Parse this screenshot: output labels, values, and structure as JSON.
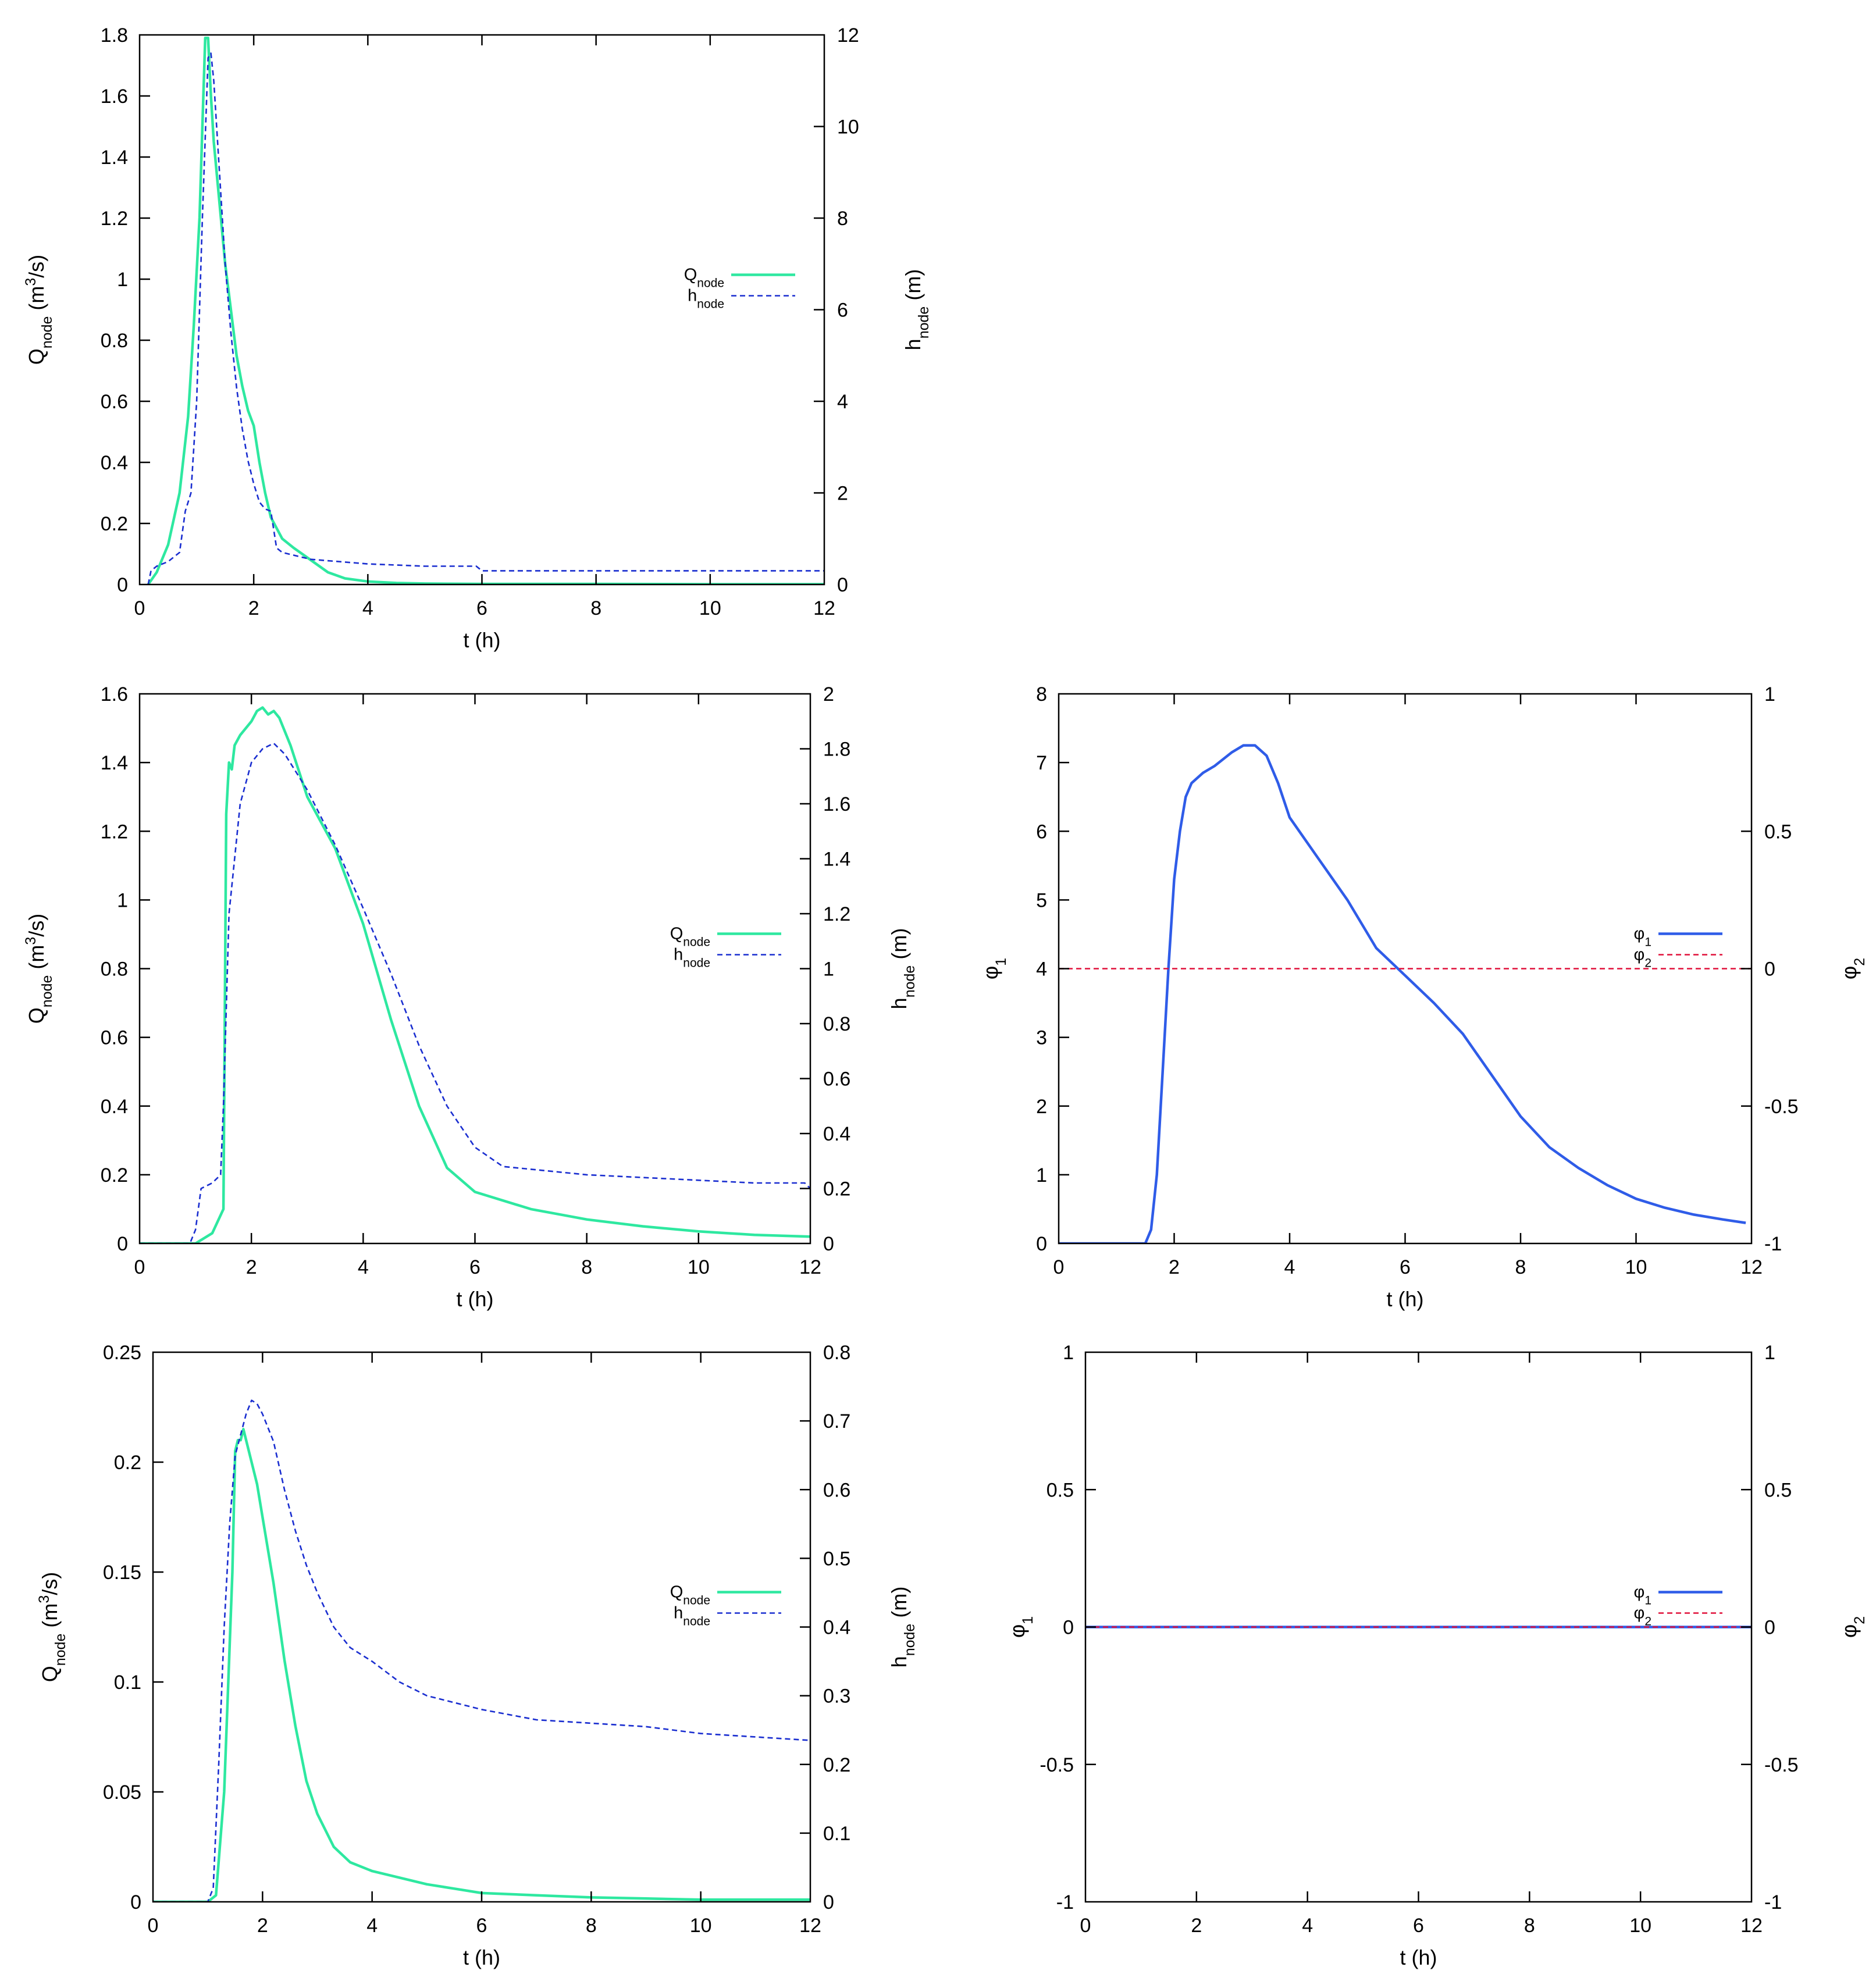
{
  "chart_data": [
    {
      "type": "line",
      "xlabel": "t (h)",
      "ylabel": {
        "base": "Q",
        "sub": "node",
        "rest": " (m",
        "sup": "3",
        "tail": "/s)"
      },
      "y2label": {
        "base": "h",
        "sub": "node",
        "rest": " (m)"
      },
      "xlim": [
        0,
        12
      ],
      "ylim": [
        0,
        1.8
      ],
      "y2lim": [
        0,
        12
      ],
      "xticks": [
        "0",
        "2",
        "4",
        "6",
        "8",
        "10",
        "12"
      ],
      "yticks": [
        "0",
        "0.2",
        "0.4",
        "0.6",
        "0.8",
        "1",
        "1.2",
        "1.4",
        "1.6",
        "1.8"
      ],
      "y2ticks": [
        "0",
        "2",
        "4",
        "6",
        "8",
        "10",
        "12"
      ],
      "grid": false,
      "legend": "center-right",
      "series": [
        {
          "name": {
            "base": "Q",
            "sub": "node"
          },
          "axis": "y",
          "color": "#2ee8a0",
          "style": "solid",
          "x": [
            0.15,
            0.3,
            0.5,
            0.7,
            0.85,
            0.95,
            1.05,
            1.1,
            1.15,
            1.2,
            1.25,
            1.3,
            1.4,
            1.5,
            1.6,
            1.7,
            1.8,
            1.9,
            2.0,
            2.1,
            2.2,
            2.3,
            2.5,
            2.7,
            3.0,
            3.3,
            3.6,
            4.0,
            4.5,
            5.0,
            6.0,
            8.0,
            10.0,
            12.0
          ],
          "y": [
            0,
            0.04,
            0.13,
            0.3,
            0.55,
            0.85,
            1.2,
            1.5,
            1.79,
            1.79,
            1.6,
            1.45,
            1.25,
            1.05,
            0.9,
            0.75,
            0.65,
            0.57,
            0.52,
            0.4,
            0.3,
            0.22,
            0.15,
            0.12,
            0.08,
            0.04,
            0.02,
            0.01,
            0.005,
            0.003,
            0.002,
            0.002,
            0.001,
            0.001
          ]
        },
        {
          "name": {
            "base": "h",
            "sub": "node"
          },
          "axis": "y2",
          "color": "#1a2ed0",
          "style": "dashed",
          "x": [
            0.15,
            0.2,
            0.3,
            0.5,
            0.7,
            0.8,
            0.9,
            1.0,
            1.1,
            1.2,
            1.25,
            1.3,
            1.4,
            1.5,
            1.6,
            1.7,
            1.8,
            1.9,
            2.0,
            2.1,
            2.2,
            2.3,
            2.4,
            2.5,
            3.0,
            4.0,
            5.0,
            5.9,
            6.0,
            8.0,
            10.0,
            12.0
          ],
          "y": [
            0,
            0.3,
            0.4,
            0.5,
            0.7,
            1.6,
            2.0,
            4.0,
            8.0,
            11.5,
            11.6,
            11.0,
            9.0,
            7.0,
            5.5,
            4.3,
            3.4,
            2.7,
            2.2,
            1.8,
            1.65,
            1.6,
            0.8,
            0.7,
            0.55,
            0.45,
            0.4,
            0.4,
            0.3,
            0.3,
            0.3,
            0.3
          ]
        }
      ]
    },
    {
      "type": "line",
      "xlabel": "t (h)",
      "ylabel": {
        "base": "Q",
        "sub": "node",
        "rest": " (m",
        "sup": "3",
        "tail": "/s)"
      },
      "y2label": {
        "base": "h",
        "sub": "node",
        "rest": " (m)"
      },
      "xlim": [
        0,
        12
      ],
      "ylim": [
        0,
        1.6
      ],
      "y2lim": [
        0,
        2
      ],
      "xticks": [
        "0",
        "2",
        "4",
        "6",
        "8",
        "10",
        "12"
      ],
      "yticks": [
        "0",
        "0.2",
        "0.4",
        "0.6",
        "0.8",
        "1",
        "1.2",
        "1.4",
        "1.6"
      ],
      "y2ticks": [
        "0",
        "0.2",
        "0.4",
        "0.6",
        "0.8",
        "1",
        "1.2",
        "1.4",
        "1.6",
        "1.8",
        "2"
      ],
      "grid": false,
      "legend": "center-right",
      "series": [
        {
          "name": {
            "base": "Q",
            "sub": "node"
          },
          "axis": "y",
          "color": "#2ee8a0",
          "style": "solid",
          "x": [
            0,
            1.0,
            1.3,
            1.5,
            1.55,
            1.6,
            1.65,
            1.7,
            1.8,
            1.9,
            2.0,
            2.1,
            2.2,
            2.3,
            2.4,
            2.5,
            2.7,
            3.0,
            3.5,
            4.0,
            4.5,
            5.0,
            5.5,
            6.0,
            7.0,
            8.0,
            9.0,
            10.0,
            11.0,
            12.0
          ],
          "y": [
            0,
            0,
            0.03,
            0.1,
            1.25,
            1.4,
            1.38,
            1.45,
            1.48,
            1.5,
            1.52,
            1.55,
            1.56,
            1.54,
            1.55,
            1.53,
            1.45,
            1.3,
            1.15,
            0.93,
            0.65,
            0.4,
            0.22,
            0.15,
            0.1,
            0.07,
            0.05,
            0.035,
            0.025,
            0.02
          ]
        },
        {
          "name": {
            "base": "h",
            "sub": "node"
          },
          "axis": "y2",
          "color": "#1a2ed0",
          "style": "dashed",
          "x": [
            0,
            0.9,
            1.0,
            1.1,
            1.3,
            1.45,
            1.5,
            1.6,
            1.8,
            2.0,
            2.2,
            2.4,
            2.6,
            3.0,
            3.5,
            4.0,
            4.5,
            5.0,
            5.5,
            6.0,
            6.5,
            7.0,
            8.0,
            9.0,
            10.0,
            11.0,
            11.9,
            12.0
          ],
          "y": [
            0,
            0,
            0.05,
            0.2,
            0.22,
            0.25,
            0.5,
            1.2,
            1.6,
            1.75,
            1.8,
            1.82,
            1.78,
            1.65,
            1.45,
            1.22,
            0.98,
            0.72,
            0.5,
            0.35,
            0.28,
            0.27,
            0.25,
            0.24,
            0.23,
            0.22,
            0.22,
            0.2
          ]
        }
      ]
    },
    {
      "type": "line",
      "xlabel": "t (h)",
      "ylabel": {
        "base": "φ",
        "sub": "1",
        "rest": ""
      },
      "y2label": {
        "base": "φ",
        "sub": "2",
        "rest": ""
      },
      "xlim": [
        0,
        12
      ],
      "ylim": [
        0,
        8
      ],
      "y2lim": [
        -1,
        1
      ],
      "xticks": [
        "0",
        "2",
        "4",
        "6",
        "8",
        "10",
        "12"
      ],
      "yticks": [
        "0",
        "1",
        "2",
        "3",
        "4",
        "5",
        "6",
        "7",
        "8"
      ],
      "y2ticks": [
        "-1",
        "-0.5",
        "0",
        "0.5",
        "1"
      ],
      "grid": false,
      "legend": "center-right",
      "series": [
        {
          "name": {
            "base": "φ",
            "sub": "1"
          },
          "axis": "y",
          "color": "#2f5ce8",
          "style": "solid",
          "x": [
            0,
            1.5,
            1.6,
            1.7,
            1.8,
            1.9,
            2.0,
            2.1,
            2.2,
            2.3,
            2.5,
            2.7,
            3.0,
            3.2,
            3.4,
            3.6,
            3.8,
            4.0,
            4.5,
            5.0,
            5.5,
            6.0,
            6.5,
            7.0,
            7.5,
            8.0,
            8.5,
            9.0,
            9.5,
            10.0,
            10.5,
            11.0,
            11.5,
            11.9
          ],
          "y": [
            0,
            0,
            0.2,
            1.0,
            2.5,
            4.0,
            5.3,
            6.0,
            6.5,
            6.7,
            6.85,
            6.95,
            7.15,
            7.25,
            7.25,
            7.1,
            6.7,
            6.2,
            5.6,
            5.0,
            4.3,
            3.9,
            3.5,
            3.05,
            2.45,
            1.85,
            1.4,
            1.1,
            0.85,
            0.65,
            0.52,
            0.42,
            0.35,
            0.3
          ]
        },
        {
          "name": {
            "base": "φ",
            "sub": "2"
          },
          "axis": "y2",
          "color": "#e0103a",
          "style": "dashed",
          "x": [
            0,
            12
          ],
          "y": [
            0,
            0
          ]
        }
      ]
    },
    {
      "type": "line",
      "xlabel": "t (h)",
      "ylabel": {
        "base": "Q",
        "sub": "node",
        "rest": " (m",
        "sup": "3",
        "tail": "/s)"
      },
      "y2label": {
        "base": "h",
        "sub": "node",
        "rest": " (m)"
      },
      "xlim": [
        0,
        12
      ],
      "ylim": [
        0,
        0.25
      ],
      "y2lim": [
        0,
        0.8
      ],
      "xticks": [
        "0",
        "2",
        "4",
        "6",
        "8",
        "10",
        "12"
      ],
      "yticks": [
        "0",
        "0.05",
        "0.1",
        "0.15",
        "0.2",
        "0.25"
      ],
      "y2ticks": [
        "0",
        "0.1",
        "0.2",
        "0.3",
        "0.4",
        "0.5",
        "0.6",
        "0.7",
        "0.8"
      ],
      "grid": false,
      "legend": "center-right",
      "series": [
        {
          "name": {
            "base": "Q",
            "sub": "node"
          },
          "axis": "y",
          "color": "#2ee8a0",
          "style": "solid",
          "x": [
            0,
            1.0,
            1.15,
            1.3,
            1.45,
            1.5,
            1.55,
            1.6,
            1.65,
            1.7,
            1.8,
            1.9,
            2.0,
            2.2,
            2.4,
            2.6,
            2.8,
            3.0,
            3.3,
            3.6,
            4.0,
            4.5,
            5.0,
            5.5,
            6.0,
            7.0,
            8.0,
            9.0,
            10.0,
            11.0,
            12.0
          ],
          "y": [
            0,
            0,
            0.003,
            0.05,
            0.15,
            0.205,
            0.21,
            0.21,
            0.215,
            0.21,
            0.2,
            0.19,
            0.175,
            0.145,
            0.11,
            0.08,
            0.055,
            0.04,
            0.025,
            0.018,
            0.014,
            0.011,
            0.008,
            0.006,
            0.004,
            0.003,
            0.002,
            0.0015,
            0.001,
            0.001,
            0.001
          ]
        },
        {
          "name": {
            "base": "h",
            "sub": "node"
          },
          "axis": "y2",
          "color": "#1a2ed0",
          "style": "dashed",
          "x": [
            0,
            1.0,
            1.1,
            1.2,
            1.3,
            1.4,
            1.5,
            1.6,
            1.7,
            1.8,
            1.9,
            2.0,
            2.2,
            2.4,
            2.6,
            2.8,
            3.0,
            3.3,
            3.6,
            4.0,
            4.5,
            5.0,
            6.0,
            7.0,
            8.0,
            9.0,
            10.0,
            11.0,
            12.0
          ],
          "y": [
            0,
            0,
            0.02,
            0.2,
            0.4,
            0.55,
            0.65,
            0.68,
            0.71,
            0.73,
            0.725,
            0.71,
            0.67,
            0.6,
            0.54,
            0.49,
            0.45,
            0.4,
            0.37,
            0.35,
            0.32,
            0.3,
            0.28,
            0.265,
            0.26,
            0.255,
            0.245,
            0.24,
            0.235
          ]
        }
      ]
    },
    {
      "type": "line",
      "xlabel": "t (h)",
      "ylabel": {
        "base": "φ",
        "sub": "1",
        "rest": ""
      },
      "y2label": {
        "base": "φ",
        "sub": "2",
        "rest": ""
      },
      "xlim": [
        0,
        12
      ],
      "ylim": [
        -1,
        1
      ],
      "y2lim": [
        -1,
        1
      ],
      "xticks": [
        "0",
        "2",
        "4",
        "6",
        "8",
        "10",
        "12"
      ],
      "yticks": [
        "-1",
        "-0.5",
        "0",
        "0.5",
        "1"
      ],
      "y2ticks": [
        "-1",
        "-0.5",
        "0",
        "0.5",
        "1"
      ],
      "grid": false,
      "legend": "center-right",
      "series": [
        {
          "name": {
            "base": "φ",
            "sub": "1"
          },
          "axis": "y",
          "color": "#2f5ce8",
          "style": "solid",
          "x": [
            0,
            12
          ],
          "y": [
            0,
            0
          ]
        },
        {
          "name": {
            "base": "φ",
            "sub": "2"
          },
          "axis": "y2",
          "color": "#e0103a",
          "style": "dashed",
          "x": [
            0,
            12
          ],
          "y": [
            0,
            0
          ]
        }
      ]
    }
  ]
}
